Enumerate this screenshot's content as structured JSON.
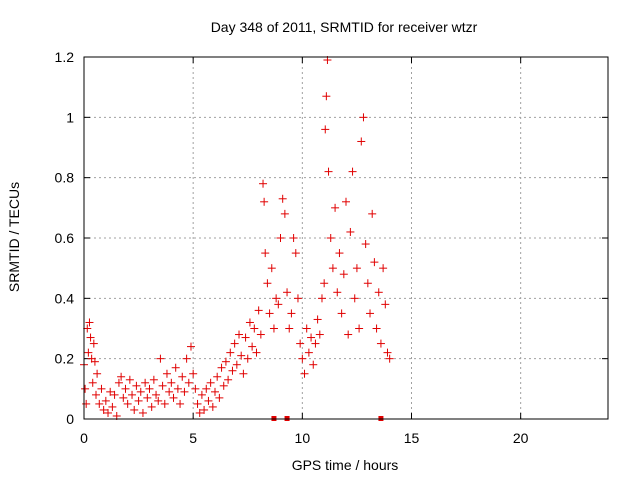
{
  "chart_data": {
    "type": "scatter",
    "title": "Day 348 of 2011, SRMTID for receiver wtzr",
    "xlabel": "GPS time / hours",
    "ylabel": "SRMTID / TECUs",
    "xlim": [
      0,
      24
    ],
    "ylim": [
      0,
      1.2
    ],
    "x_ticks": [
      "0",
      "5",
      "10",
      "15",
      "20"
    ],
    "y_ticks": [
      "0",
      "0.2",
      "0.4",
      "0.6",
      "0.8",
      "1",
      "1.2"
    ],
    "grid": true,
    "marker": "plus",
    "color": "#e00000",
    "series": [
      {
        "name": "SRMTID",
        "points": [
          [
            0.0,
            0.18
          ],
          [
            0.05,
            0.1
          ],
          [
            0.1,
            0.05
          ],
          [
            0.15,
            0.3
          ],
          [
            0.2,
            0.22
          ],
          [
            0.25,
            0.32
          ],
          [
            0.3,
            0.27
          ],
          [
            0.35,
            0.2
          ],
          [
            0.4,
            0.12
          ],
          [
            0.45,
            0.25
          ],
          [
            0.5,
            0.19
          ],
          [
            0.55,
            0.08
          ],
          [
            0.6,
            0.15
          ],
          [
            0.7,
            0.05
          ],
          [
            0.8,
            0.1
          ],
          [
            0.9,
            0.03
          ],
          [
            1.0,
            0.06
          ],
          [
            1.1,
            0.02
          ],
          [
            1.2,
            0.09
          ],
          [
            1.3,
            0.04
          ],
          [
            1.4,
            0.08
          ],
          [
            1.5,
            0.01
          ],
          [
            1.6,
            0.12
          ],
          [
            1.7,
            0.14
          ],
          [
            1.8,
            0.07
          ],
          [
            1.9,
            0.1
          ],
          [
            2.0,
            0.05
          ],
          [
            2.1,
            0.13
          ],
          [
            2.2,
            0.08
          ],
          [
            2.3,
            0.03
          ],
          [
            2.4,
            0.11
          ],
          [
            2.5,
            0.06
          ],
          [
            2.6,
            0.09
          ],
          [
            2.7,
            0.02
          ],
          [
            2.8,
            0.12
          ],
          [
            2.9,
            0.07
          ],
          [
            3.0,
            0.1
          ],
          [
            3.1,
            0.04
          ],
          [
            3.2,
            0.13
          ],
          [
            3.3,
            0.08
          ],
          [
            3.4,
            0.06
          ],
          [
            3.5,
            0.2
          ],
          [
            3.6,
            0.11
          ],
          [
            3.7,
            0.05
          ],
          [
            3.8,
            0.15
          ],
          [
            3.9,
            0.09
          ],
          [
            4.0,
            0.12
          ],
          [
            4.1,
            0.07
          ],
          [
            4.2,
            0.17
          ],
          [
            4.3,
            0.1
          ],
          [
            4.4,
            0.05
          ],
          [
            4.5,
            0.14
          ],
          [
            4.6,
            0.09
          ],
          [
            4.7,
            0.2
          ],
          [
            4.8,
            0.12
          ],
          [
            4.9,
            0.24
          ],
          [
            5.0,
            0.15
          ],
          [
            5.1,
            0.1
          ],
          [
            5.2,
            0.05
          ],
          [
            5.3,
            0.02
          ],
          [
            5.4,
            0.08
          ],
          [
            5.5,
            0.03
          ],
          [
            5.6,
            0.1
          ],
          [
            5.7,
            0.06
          ],
          [
            5.8,
            0.12
          ],
          [
            5.9,
            0.04
          ],
          [
            6.0,
            0.09
          ],
          [
            6.1,
            0.14
          ],
          [
            6.2,
            0.07
          ],
          [
            6.3,
            0.17
          ],
          [
            6.4,
            0.11
          ],
          [
            6.5,
            0.19
          ],
          [
            6.6,
            0.13
          ],
          [
            6.7,
            0.22
          ],
          [
            6.8,
            0.16
          ],
          [
            6.9,
            0.25
          ],
          [
            7.0,
            0.18
          ],
          [
            7.1,
            0.28
          ],
          [
            7.2,
            0.21
          ],
          [
            7.3,
            0.15
          ],
          [
            7.4,
            0.27
          ],
          [
            7.5,
            0.2
          ],
          [
            7.6,
            0.32
          ],
          [
            7.7,
            0.24
          ],
          [
            7.8,
            0.3
          ],
          [
            7.9,
            0.22
          ],
          [
            8.0,
            0.36
          ],
          [
            8.1,
            0.28
          ],
          [
            8.2,
            0.78
          ],
          [
            8.25,
            0.72
          ],
          [
            8.3,
            0.55
          ],
          [
            8.4,
            0.45
          ],
          [
            8.5,
            0.35
          ],
          [
            8.6,
            0.5
          ],
          [
            8.7,
            0.3
          ],
          [
            8.8,
            0.4
          ],
          [
            8.9,
            0.38
          ],
          [
            9.0,
            0.6
          ],
          [
            9.1,
            0.73
          ],
          [
            9.2,
            0.68
          ],
          [
            9.3,
            0.42
          ],
          [
            9.4,
            0.3
          ],
          [
            9.5,
            0.35
          ],
          [
            9.6,
            0.6
          ],
          [
            9.7,
            0.55
          ],
          [
            9.8,
            0.4
          ],
          [
            9.9,
            0.25
          ],
          [
            10.0,
            0.2
          ],
          [
            10.1,
            0.15
          ],
          [
            10.2,
            0.3
          ],
          [
            10.3,
            0.22
          ],
          [
            10.4,
            0.27
          ],
          [
            10.5,
            0.18
          ],
          [
            10.6,
            0.25
          ],
          [
            10.7,
            0.33
          ],
          [
            10.8,
            0.28
          ],
          [
            10.9,
            0.4
          ],
          [
            11.0,
            0.45
          ],
          [
            11.05,
            0.96
          ],
          [
            11.1,
            1.07
          ],
          [
            11.15,
            1.19
          ],
          [
            11.2,
            0.82
          ],
          [
            11.3,
            0.6
          ],
          [
            11.4,
            0.5
          ],
          [
            11.5,
            0.7
          ],
          [
            11.6,
            0.42
          ],
          [
            11.7,
            0.55
          ],
          [
            11.8,
            0.35
          ],
          [
            11.9,
            0.48
          ],
          [
            12.0,
            0.72
          ],
          [
            12.1,
            0.28
          ],
          [
            12.2,
            0.62
          ],
          [
            12.3,
            0.82
          ],
          [
            12.4,
            0.4
          ],
          [
            12.5,
            0.5
          ],
          [
            12.6,
            0.3
          ],
          [
            12.7,
            0.92
          ],
          [
            12.8,
            1.0
          ],
          [
            12.9,
            0.58
          ],
          [
            13.0,
            0.45
          ],
          [
            13.1,
            0.35
          ],
          [
            13.2,
            0.68
          ],
          [
            13.3,
            0.52
          ],
          [
            13.4,
            0.3
          ],
          [
            13.5,
            0.42
          ],
          [
            13.6,
            0.25
          ],
          [
            13.7,
            0.5
          ],
          [
            13.8,
            0.38
          ],
          [
            13.9,
            0.22
          ],
          [
            14.0,
            0.2
          ]
        ]
      }
    ],
    "axis_markers": [
      8.7,
      9.3,
      13.6
    ]
  }
}
